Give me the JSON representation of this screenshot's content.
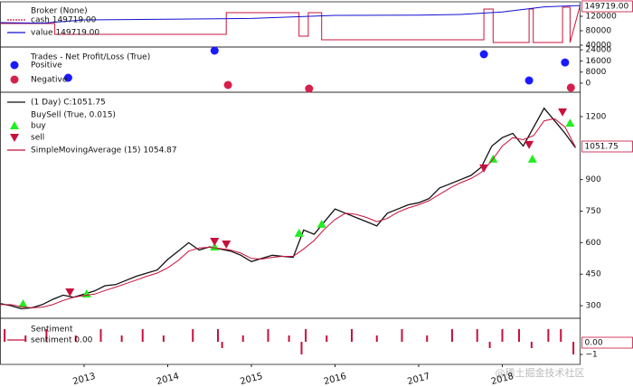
{
  "chart_data": [
    {
      "type": "line",
      "title": "Broker (None)",
      "last_label": "149719.00",
      "xlim": [
        2012,
        2018.93
      ],
      "ylim": [
        35000,
        160000
      ],
      "yticks": [
        40000,
        80000,
        120000
      ],
      "series": [
        {
          "name": "cash 149719.00",
          "color": "#c8163c",
          "step": true,
          "x": [
            2012,
            2012.65,
            2012.65,
            2014.7,
            2014.7,
            2015.57,
            2015.57,
            2015.68,
            2015.68,
            2015.84,
            2015.84,
            2017.78,
            2017.78,
            2017.89,
            2017.89,
            2018.32,
            2018.32,
            2018.37,
            2018.37,
            2018.72,
            2018.72,
            2018.81,
            2018.81,
            2018.93
          ],
          "values": [
            100000,
            100000,
            70000,
            70000,
            130000,
            130000,
            65000,
            65000,
            130000,
            130000,
            55000,
            55000,
            140000,
            140000,
            47500,
            47500,
            140000,
            140000,
            47500,
            47500,
            145000,
            145000,
            47500,
            149719
          ]
        },
        {
          "name": "value 149719.00",
          "color": "#1010d0",
          "x": [
            2012,
            2012.5,
            2013,
            2014,
            2015,
            2016,
            2017,
            2017.5,
            2018,
            2018.5,
            2018.93
          ],
          "values": [
            102500,
            101000,
            110000,
            112000,
            114000,
            122500,
            123000,
            125000,
            132000,
            146000,
            149719
          ]
        }
      ]
    },
    {
      "type": "scatter",
      "title": "Trades - Net Profit/Loss (True)",
      "xlim": [
        2012,
        2018.93
      ],
      "ylim": [
        -6500,
        26000
      ],
      "yticks": [
        0,
        8000,
        16000,
        24000
      ],
      "series": [
        {
          "name": "Positive",
          "color": "#1a1aff",
          "x": [
            2012.81,
            2014.56,
            2017.78,
            2018.32,
            2018.75
          ],
          "values": [
            3900,
            23400,
            20800,
            1950,
            14900
          ]
        },
        {
          "name": "Negative",
          "color": "#d6204b",
          "x": [
            2014.72,
            2015.69,
            2018.82
          ],
          "values": [
            -1300,
            -3900,
            -3200
          ]
        }
      ]
    },
    {
      "type": "line",
      "subtitle": "BuySell (True, 0.015)",
      "last_label": "1051.75",
      "xlim": [
        2012,
        2018.93
      ],
      "ylim": [
        240,
        1316
      ],
      "yticks": [
        300,
        450,
        600,
        750,
        900,
        1200
      ],
      "x": [
        2012,
        2012.125,
        2012.25,
        2012.375,
        2012.5,
        2012.625,
        2012.75,
        2012.875,
        2013,
        2013.125,
        2013.25,
        2013.375,
        2013.5,
        2013.625,
        2013.75,
        2013.875,
        2014,
        2014.125,
        2014.25,
        2014.375,
        2014.5,
        2014.625,
        2014.75,
        2014.875,
        2015,
        2015.125,
        2015.25,
        2015.375,
        2015.5,
        2015.625,
        2015.75,
        2015.875,
        2016,
        2016.125,
        2016.25,
        2016.375,
        2016.5,
        2016.625,
        2016.75,
        2016.875,
        2017,
        2017.125,
        2017.25,
        2017.375,
        2017.5,
        2017.625,
        2017.75,
        2017.875,
        2018,
        2018.125,
        2018.25,
        2018.375,
        2018.5,
        2018.625,
        2018.75,
        2018.875
      ],
      "series": [
        {
          "name": "(1 Day) C:1051.75",
          "color": "#111111",
          "values": [
            310,
            300,
            285,
            290,
            305,
            330,
            350,
            340,
            355,
            370,
            395,
            400,
            420,
            440,
            455,
            470,
            520,
            560,
            600,
            565,
            580,
            570,
            560,
            540,
            510,
            525,
            540,
            535,
            530,
            660,
            640,
            700,
            760,
            740,
            720,
            700,
            680,
            740,
            760,
            780,
            790,
            810,
            860,
            880,
            900,
            920,
            960,
            1060,
            1100,
            1120,
            1060,
            1150,
            1240,
            1180,
            1120,
            1051.75
          ]
        },
        {
          "name": "buy",
          "color": "#22ee22",
          "marker": "^",
          "x": [
            2012.27,
            2013.03,
            2014.56,
            2015.57,
            2015.84,
            2017.89,
            2018.36,
            2018.81
          ],
          "values": [
            309,
            356,
            580,
            645,
            688,
            998,
            998,
            1169
          ]
        },
        {
          "name": "sell",
          "color": "#c8103c",
          "marker": "v",
          "x": [
            2012.83,
            2014.56,
            2014.7,
            2017.78,
            2018.32,
            2018.72
          ],
          "values": [
            365,
            606,
            593,
            955,
            1067,
            1222
          ]
        },
        {
          "name": "SimpleMovingAverage (15) 1054.87",
          "color": "#c8103c",
          "values": [
            305,
            305,
            295,
            290,
            293,
            305,
            325,
            340,
            348,
            355,
            372,
            388,
            405,
            422,
            440,
            455,
            480,
            515,
            560,
            575,
            578,
            572,
            565,
            550,
            525,
            522,
            530,
            535,
            535,
            570,
            610,
            665,
            710,
            740,
            735,
            720,
            700,
            715,
            745,
            765,
            780,
            800,
            830,
            860,
            885,
            905,
            935,
            990,
            1060,
            1100,
            1090,
            1110,
            1180,
            1190,
            1150,
            1054.87
          ]
        }
      ]
    },
    {
      "type": "bar",
      "title": "Sentiment",
      "last_label": "0.00",
      "xlim": [
        2012,
        2018.93
      ],
      "xticks": [
        2013,
        2014,
        2015,
        2016,
        2017,
        2018
      ],
      "ylim": [
        -1.79,
        1.86
      ],
      "yticks": [
        {
          "value": -1,
          "label": "−1"
        }
      ],
      "series": [
        {
          "name": "sentiment 0.00",
          "color": "#c8103c",
          "x": [
            2012.05,
            2012.3,
            2012.55,
            2012.9,
            2013.2,
            2013.45,
            2013.7,
            2013.95,
            2014.3,
            2014.6,
            2014.65,
            2014.9,
            2015.2,
            2015.45,
            2015.6,
            2015.65,
            2015.9,
            2016.2,
            2016.5,
            2016.8,
            2017.1,
            2017.4,
            2017.7,
            2017.85,
            2018,
            2018.2,
            2018.35,
            2018.55,
            2018.7,
            2018.85
          ],
          "values": [
            1,
            0.5,
            1,
            0.5,
            1,
            0.5,
            1,
            0.5,
            1,
            1,
            -0.5,
            0.5,
            1,
            0.5,
            -1,
            1,
            0.5,
            1,
            0.5,
            1,
            0.5,
            1,
            1,
            -0.5,
            1,
            1,
            -0.5,
            1,
            1,
            -1
          ]
        }
      ]
    }
  ],
  "watermark": "@稀土掘金技术社区"
}
